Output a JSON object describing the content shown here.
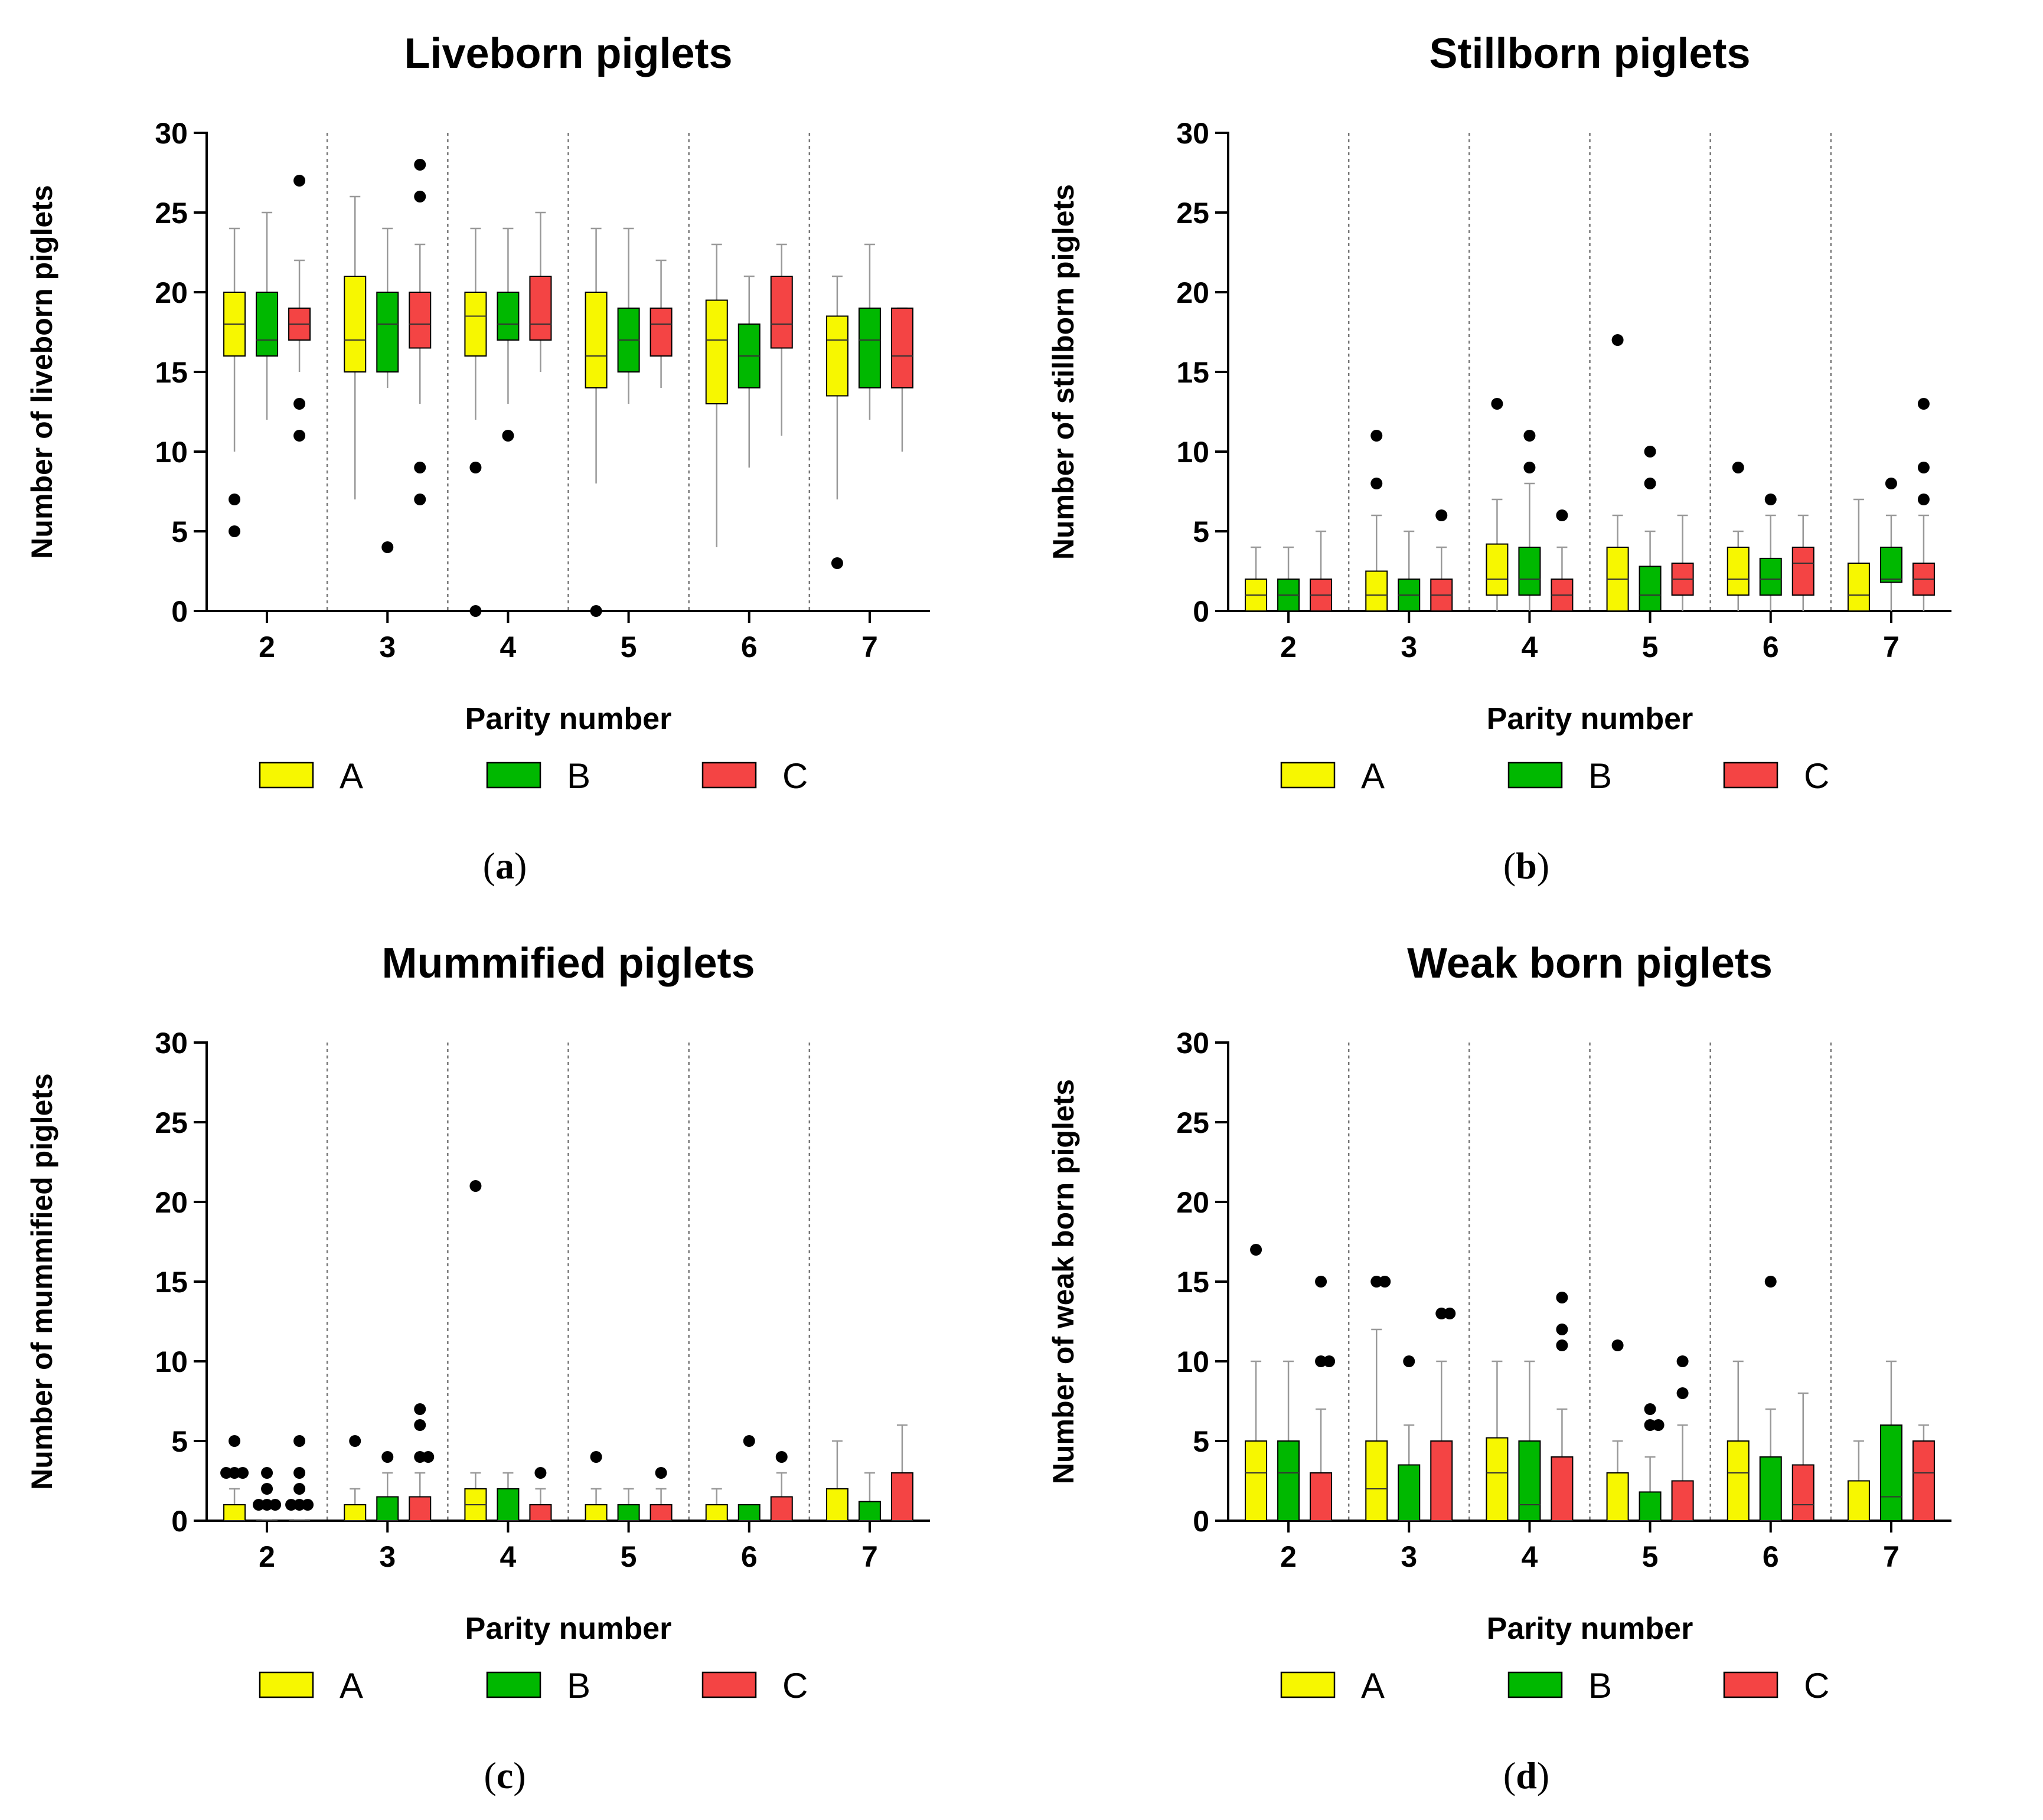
{
  "figure": {
    "legend": [
      {
        "label": "A",
        "color": "#f7f700"
      },
      {
        "label": "B",
        "color": "#00b800"
      },
      {
        "label": "C",
        "color": "#f44444"
      }
    ]
  },
  "panels": [
    {
      "caption_open": "(",
      "caption_letter": "a",
      "caption_close": ")"
    },
    {
      "caption_open": "(",
      "caption_letter": "b",
      "caption_close": ")"
    },
    {
      "caption_open": "(",
      "caption_letter": "c",
      "caption_close": ")"
    },
    {
      "caption_open": "(",
      "caption_letter": "d",
      "caption_close": ")"
    }
  ],
  "chart_data": [
    {
      "type": "boxplot",
      "title": "Liveborn piglets",
      "xlabel": "Parity number",
      "ylabel": "Number of liveborn piglets",
      "ylim": [
        0,
        30
      ],
      "yticks": [
        0,
        5,
        10,
        15,
        20,
        25,
        30
      ],
      "categories": [
        "2",
        "3",
        "4",
        "5",
        "6",
        "7"
      ],
      "series_names": [
        "A",
        "B",
        "C"
      ],
      "groups": [
        [
          {
            "min": 10,
            "q1": 16,
            "med": 18,
            "q3": 20,
            "max": 24,
            "out": [
              7,
              5
            ]
          },
          {
            "min": 12,
            "q1": 16,
            "med": 17,
            "q3": 20,
            "max": 25,
            "out": []
          },
          {
            "min": 15,
            "q1": 17,
            "med": 18,
            "q3": 19,
            "max": 22,
            "out": [
              27,
              13,
              11
            ]
          }
        ],
        [
          {
            "min": 7,
            "q1": 15,
            "med": 17,
            "q3": 21,
            "max": 26,
            "out": []
          },
          {
            "min": 14,
            "q1": 15,
            "med": 18,
            "q3": 20,
            "max": 24,
            "out": [
              4
            ]
          },
          {
            "min": 13,
            "q1": 16.5,
            "med": 18,
            "q3": 20,
            "max": 23,
            "out": [
              28,
              26,
              9,
              7
            ]
          }
        ],
        [
          {
            "min": 12,
            "q1": 16,
            "med": 18.5,
            "q3": 20,
            "max": 24,
            "out": [
              9,
              0
            ]
          },
          {
            "min": 13,
            "q1": 17,
            "med": 18,
            "q3": 20,
            "max": 24,
            "out": [
              11
            ]
          },
          {
            "min": 15,
            "q1": 17,
            "med": 18,
            "q3": 21,
            "max": 25,
            "out": []
          }
        ],
        [
          {
            "min": 8,
            "q1": 14,
            "med": 16,
            "q3": 20,
            "max": 24,
            "out": [
              0
            ]
          },
          {
            "min": 13,
            "q1": 15,
            "med": 17,
            "q3": 19,
            "max": 24,
            "out": []
          },
          {
            "min": 14,
            "q1": 16,
            "med": 18,
            "q3": 19,
            "max": 22,
            "out": []
          }
        ],
        [
          {
            "min": 4,
            "q1": 13,
            "med": 17,
            "q3": 19.5,
            "max": 23,
            "out": []
          },
          {
            "min": 9,
            "q1": 14,
            "med": 16,
            "q3": 18,
            "max": 21,
            "out": []
          },
          {
            "min": 11,
            "q1": 16.5,
            "med": 18,
            "q3": 21,
            "max": 23,
            "out": []
          }
        ],
        [
          {
            "min": 7,
            "q1": 13.5,
            "med": 17,
            "q3": 18.5,
            "max": 21,
            "out": [
              3
            ]
          },
          {
            "min": 12,
            "q1": 14,
            "med": 17,
            "q3": 19,
            "max": 23,
            "out": []
          },
          {
            "min": 10,
            "q1": 14,
            "med": 16,
            "q3": 19,
            "max": 19,
            "out": []
          }
        ]
      ]
    },
    {
      "type": "boxplot",
      "title": "Stillborn piglets",
      "xlabel": "Parity number",
      "ylabel": "Number of stillborn piglets",
      "ylim": [
        0,
        30
      ],
      "yticks": [
        0,
        5,
        10,
        15,
        20,
        25,
        30
      ],
      "categories": [
        "2",
        "3",
        "4",
        "5",
        "6",
        "7"
      ],
      "series_names": [
        "A",
        "B",
        "C"
      ],
      "groups": [
        [
          {
            "min": 0,
            "q1": 0,
            "med": 1,
            "q3": 2,
            "max": 4,
            "out": []
          },
          {
            "min": 0,
            "q1": 0,
            "med": 1,
            "q3": 2,
            "max": 4,
            "out": []
          },
          {
            "min": 0,
            "q1": 0,
            "med": 1,
            "q3": 2,
            "max": 5,
            "out": []
          }
        ],
        [
          {
            "min": 0,
            "q1": 0,
            "med": 1,
            "q3": 2.5,
            "max": 6,
            "out": [
              11,
              8
            ]
          },
          {
            "min": 0,
            "q1": 0,
            "med": 1,
            "q3": 2,
            "max": 5,
            "out": []
          },
          {
            "min": 0,
            "q1": 0,
            "med": 1,
            "q3": 2,
            "max": 4,
            "out": [
              6
            ]
          }
        ],
        [
          {
            "min": 0,
            "q1": 1,
            "med": 2,
            "q3": 4.2,
            "max": 7,
            "out": [
              13
            ]
          },
          {
            "min": 0,
            "q1": 1,
            "med": 2,
            "q3": 4,
            "max": 8,
            "out": [
              11,
              9
            ]
          },
          {
            "min": 0,
            "q1": 0,
            "med": 1,
            "q3": 2,
            "max": 4,
            "out": [
              6
            ]
          }
        ],
        [
          {
            "min": 0,
            "q1": 0,
            "med": 2,
            "q3": 4,
            "max": 6,
            "out": [
              17
            ]
          },
          {
            "min": 0,
            "q1": 0,
            "med": 1,
            "q3": 2.8,
            "max": 5,
            "out": [
              10,
              8
            ]
          },
          {
            "min": 0,
            "q1": 1,
            "med": 2,
            "q3": 3,
            "max": 6,
            "out": []
          }
        ],
        [
          {
            "min": 0,
            "q1": 1,
            "med": 2,
            "q3": 4,
            "max": 5,
            "out": [
              9
            ]
          },
          {
            "min": 0,
            "q1": 1,
            "med": 2,
            "q3": 3.3,
            "max": 6,
            "out": [
              7
            ]
          },
          {
            "min": 0,
            "q1": 1,
            "med": 3,
            "q3": 4,
            "max": 6,
            "out": []
          }
        ],
        [
          {
            "min": 0,
            "q1": 0,
            "med": 1,
            "q3": 3,
            "max": 7,
            "out": []
          },
          {
            "min": 0,
            "q1": 1.8,
            "med": 2,
            "q3": 4,
            "max": 6,
            "out": [
              8
            ]
          },
          {
            "min": 0,
            "q1": 1,
            "med": 2,
            "q3": 3,
            "max": 6,
            "out": [
              13,
              9,
              7
            ]
          }
        ]
      ]
    },
    {
      "type": "boxplot",
      "title": "Mummified piglets",
      "xlabel": "Parity number",
      "ylabel": "Number of mummified piglets",
      "ylim": [
        0,
        30
      ],
      "yticks": [
        0,
        5,
        10,
        15,
        20,
        25,
        30
      ],
      "categories": [
        "2",
        "3",
        "4",
        "5",
        "6",
        "7"
      ],
      "series_names": [
        "A",
        "B",
        "C"
      ],
      "groups": [
        [
          {
            "min": 0,
            "q1": 0,
            "med": 0,
            "q3": 1,
            "max": 2,
            "out": [
              5,
              3,
              3,
              3
            ]
          },
          {
            "min": 0,
            "q1": 0,
            "med": 0,
            "q3": 0,
            "max": 0,
            "out": [
              3,
              2,
              1,
              1,
              1
            ]
          },
          {
            "min": 0,
            "q1": 0,
            "med": 0,
            "q3": 0,
            "max": 0,
            "out": [
              5,
              3,
              2,
              1,
              1,
              1
            ]
          }
        ],
        [
          {
            "min": 0,
            "q1": 0,
            "med": 0,
            "q3": 1,
            "max": 2,
            "out": [
              5
            ]
          },
          {
            "min": 0,
            "q1": 0,
            "med": 0,
            "q3": 1.5,
            "max": 3,
            "out": [
              4
            ]
          },
          {
            "min": 0,
            "q1": 0,
            "med": 0,
            "q3": 1.5,
            "max": 3,
            "out": [
              7,
              6,
              4,
              4
            ]
          }
        ],
        [
          {
            "min": 0,
            "q1": 0,
            "med": 1,
            "q3": 2,
            "max": 3,
            "out": [
              21
            ]
          },
          {
            "min": 0,
            "q1": 0,
            "med": 0,
            "q3": 2,
            "max": 3,
            "out": []
          },
          {
            "min": 0,
            "q1": 0,
            "med": 0,
            "q3": 1,
            "max": 2,
            "out": [
              3
            ]
          }
        ],
        [
          {
            "min": 0,
            "q1": 0,
            "med": 0,
            "q3": 1,
            "max": 2,
            "out": [
              4
            ]
          },
          {
            "min": 0,
            "q1": 0,
            "med": 0,
            "q3": 1,
            "max": 2,
            "out": []
          },
          {
            "min": 0,
            "q1": 0,
            "med": 0,
            "q3": 1,
            "max": 2,
            "out": [
              3
            ]
          }
        ],
        [
          {
            "min": 0,
            "q1": 0,
            "med": 0,
            "q3": 1,
            "max": 2,
            "out": []
          },
          {
            "min": 0,
            "q1": 0,
            "med": 0,
            "q3": 1,
            "max": 1,
            "out": [
              5
            ]
          },
          {
            "min": 0,
            "q1": 0,
            "med": 0,
            "q3": 1.5,
            "max": 3,
            "out": [
              4
            ]
          }
        ],
        [
          {
            "min": 0,
            "q1": 0,
            "med": 0,
            "q3": 2,
            "max": 5,
            "out": []
          },
          {
            "min": 0,
            "q1": 0,
            "med": 0,
            "q3": 1.2,
            "max": 3,
            "out": []
          },
          {
            "min": 0,
            "q1": 0,
            "med": 0,
            "q3": 3,
            "max": 6,
            "out": []
          }
        ]
      ]
    },
    {
      "type": "boxplot",
      "title": "Weak born piglets",
      "xlabel": "Parity number",
      "ylabel": "Number of weak born piglets",
      "ylim": [
        0,
        30
      ],
      "yticks": [
        0,
        5,
        10,
        15,
        20,
        25,
        30
      ],
      "categories": [
        "2",
        "3",
        "4",
        "5",
        "6",
        "7"
      ],
      "series_names": [
        "A",
        "B",
        "C"
      ],
      "groups": [
        [
          {
            "min": 0,
            "q1": 0,
            "med": 3,
            "q3": 5,
            "max": 10,
            "out": [
              17
            ]
          },
          {
            "min": 0,
            "q1": 0,
            "med": 3,
            "q3": 5,
            "max": 10,
            "out": []
          },
          {
            "min": 0,
            "q1": 0,
            "med": 0,
            "q3": 3,
            "max": 7,
            "out": [
              15,
              10,
              10
            ]
          }
        ],
        [
          {
            "min": 0,
            "q1": 0,
            "med": 2,
            "q3": 5,
            "max": 12,
            "out": [
              15,
              15
            ]
          },
          {
            "min": 0,
            "q1": 0,
            "med": 0,
            "q3": 3.5,
            "max": 6,
            "out": [
              10
            ]
          },
          {
            "min": 0,
            "q1": 0,
            "med": 0,
            "q3": 5,
            "max": 10,
            "out": [
              13,
              13
            ]
          }
        ],
        [
          {
            "min": 0,
            "q1": 0,
            "med": 3,
            "q3": 5.2,
            "max": 10,
            "out": []
          },
          {
            "min": 0,
            "q1": 0,
            "med": 1,
            "q3": 5,
            "max": 10,
            "out": []
          },
          {
            "min": 0,
            "q1": 0,
            "med": 0,
            "q3": 4,
            "max": 7,
            "out": [
              14,
              12,
              11
            ]
          }
        ],
        [
          {
            "min": 0,
            "q1": 0,
            "med": 0,
            "q3": 3,
            "max": 5,
            "out": [
              11
            ]
          },
          {
            "min": 0,
            "q1": 0,
            "med": 0,
            "q3": 1.8,
            "max": 4,
            "out": [
              7,
              6,
              6
            ]
          },
          {
            "min": 0,
            "q1": 0,
            "med": 0,
            "q3": 2.5,
            "max": 6,
            "out": [
              10,
              8
            ]
          }
        ],
        [
          {
            "min": 0,
            "q1": 0,
            "med": 3,
            "q3": 5,
            "max": 10,
            "out": []
          },
          {
            "min": 0,
            "q1": 0,
            "med": 0,
            "q3": 4,
            "max": 7,
            "out": [
              15
            ]
          },
          {
            "min": 0,
            "q1": 0,
            "med": 1,
            "q3": 3.5,
            "max": 8,
            "out": []
          }
        ],
        [
          {
            "min": 0,
            "q1": 0,
            "med": 0,
            "q3": 2.5,
            "max": 5,
            "out": []
          },
          {
            "min": 0,
            "q1": 0,
            "med": 1.5,
            "q3": 6,
            "max": 10,
            "out": []
          },
          {
            "min": 0,
            "q1": 0,
            "med": 3,
            "q3": 5,
            "max": 6,
            "out": []
          }
        ]
      ]
    }
  ]
}
